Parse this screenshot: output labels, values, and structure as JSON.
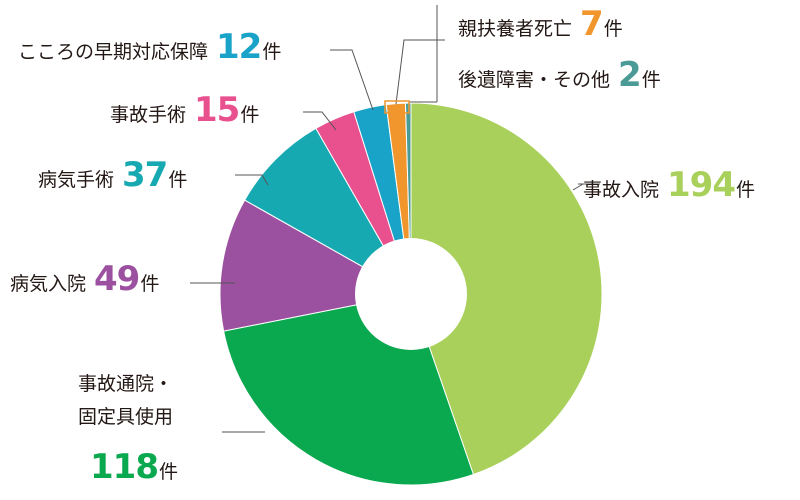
{
  "chart_data": {
    "type": "pie",
    "donut": true,
    "unit": "件",
    "slices": [
      {
        "label": "事故入院",
        "value": 194,
        "color": "#a8d05a"
      },
      {
        "label": "事故通院・固定具使用",
        "value": 118,
        "color": "#0aa84f"
      },
      {
        "label": "病気入院",
        "value": 49,
        "color": "#9b50a0"
      },
      {
        "label": "病気手術",
        "value": 37,
        "color": "#17a9b1"
      },
      {
        "label": "事故手術",
        "value": 15,
        "color": "#e8508e"
      },
      {
        "label": "こころの早期対応保障",
        "value": 12,
        "color": "#1aa3c9"
      },
      {
        "label": "親扶養者死亡",
        "value": 7,
        "color": "#f0962d"
      },
      {
        "label": "後遺障害・その他",
        "value": 2,
        "color": "#4a9a96"
      }
    ],
    "labels_display": {
      "accident_hospital": {
        "name": "事故入院",
        "num": "194"
      },
      "accident_outpatient": {
        "name1": "事故通院・",
        "name2": "固定具使用",
        "num": "118"
      },
      "illness_hospital": {
        "name": "病気入院",
        "num": "49"
      },
      "illness_surgery": {
        "name": "病気手術",
        "num": "37"
      },
      "accident_surgery": {
        "name": "事故手術",
        "num": "15"
      },
      "mental": {
        "name": "こころの早期対応保障",
        "num": "12"
      },
      "guardian_death": {
        "name": "親扶養者死亡",
        "num": "7"
      },
      "disability": {
        "name": "後遺障害・その他",
        "num": "2"
      }
    }
  }
}
